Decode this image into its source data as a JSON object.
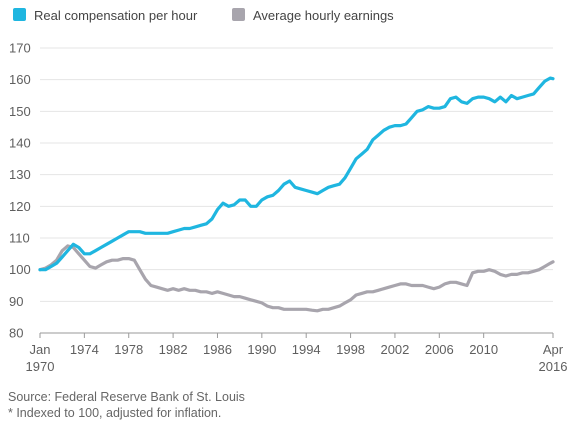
{
  "chart_data": {
    "type": "line",
    "y_ticks": [
      "170",
      "160",
      "150",
      "140",
      "130",
      "120",
      "110",
      "100",
      "90",
      "80"
    ],
    "ylim": [
      80,
      170
    ],
    "xlim": [
      1970.0,
      2016.25
    ],
    "x_ticks": [
      {
        "value": 1970.0,
        "label": "Jan",
        "label2": "1970"
      },
      {
        "value": 1974,
        "label": "1974"
      },
      {
        "value": 1978,
        "label": "1978"
      },
      {
        "value": 1982,
        "label": "1982"
      },
      {
        "value": 1986,
        "label": "1986"
      },
      {
        "value": 1990,
        "label": "1990"
      },
      {
        "value": 1994,
        "label": "1994"
      },
      {
        "value": 1998,
        "label": "1998"
      },
      {
        "value": 2002,
        "label": "2002"
      },
      {
        "value": 2006,
        "label": "2006"
      },
      {
        "value": 2010,
        "label": "2010"
      },
      {
        "value": 2016.25,
        "label": "Apr",
        "label2": "2016"
      }
    ],
    "grid": true,
    "legend_position": "top-left",
    "series": [
      {
        "name": "Real compensation per hour",
        "color": "#1fb6e0",
        "x": [
          1970,
          1970.5,
          1971,
          1971.5,
          1972,
          1972.5,
          1973,
          1973.5,
          1974,
          1974.5,
          1975,
          1975.5,
          1976,
          1976.5,
          1977,
          1977.5,
          1978,
          1978.5,
          1979,
          1979.5,
          1980,
          1980.5,
          1981,
          1981.5,
          1982,
          1982.5,
          1983,
          1983.5,
          1984,
          1984.5,
          1985,
          1985.5,
          1986,
          1986.5,
          1987,
          1987.5,
          1988,
          1988.5,
          1989,
          1989.5,
          1990,
          1990.5,
          1991,
          1991.5,
          1992,
          1992.5,
          1993,
          1993.5,
          1994,
          1994.5,
          1995,
          1995.5,
          1996,
          1996.5,
          1997,
          1997.5,
          1998,
          1998.5,
          1999,
          1999.5,
          2000,
          2000.5,
          2001,
          2001.5,
          2002,
          2002.5,
          2003,
          2003.5,
          2004,
          2004.5,
          2005,
          2005.5,
          2006,
          2006.5,
          2007,
          2007.5,
          2008,
          2008.5,
          2009,
          2009.5,
          2010,
          2010.5,
          2011,
          2011.5,
          2012,
          2012.5,
          2013,
          2013.5,
          2014,
          2014.5,
          2015,
          2015.5,
          2016,
          2016.25
        ],
        "values": [
          100,
          100,
          101,
          102,
          104,
          106,
          108,
          107,
          105,
          105,
          106,
          107,
          108,
          109,
          110,
          111,
          112,
          112,
          112,
          111.5,
          111.5,
          111.5,
          111.5,
          111.5,
          112,
          112.5,
          113,
          113,
          113.5,
          114,
          114.5,
          116,
          119,
          121,
          120,
          120.5,
          122,
          122,
          120,
          120,
          122,
          123,
          123.5,
          125,
          127,
          128,
          126,
          125.5,
          125,
          124.5,
          124,
          125,
          126,
          126.5,
          127,
          129,
          132,
          135,
          136.5,
          138,
          141,
          142.5,
          144,
          145,
          145.5,
          145.5,
          146,
          148,
          150,
          150.5,
          151.5,
          151,
          151,
          151.5,
          154,
          154.5,
          153,
          152.5,
          154,
          154.5,
          154.5,
          154,
          153,
          154.5,
          153,
          155,
          154,
          154.5,
          155,
          155.5,
          157.5,
          159.5,
          160.5,
          160.3
        ]
      },
      {
        "name": "Average hourly earnings",
        "color": "#a8a5ad",
        "x": [
          1970,
          1970.5,
          1971,
          1971.5,
          1972,
          1972.5,
          1973,
          1973.5,
          1974,
          1974.5,
          1975,
          1975.5,
          1976,
          1976.5,
          1977,
          1977.5,
          1978,
          1978.5,
          1979,
          1979.5,
          1980,
          1980.5,
          1981,
          1981.5,
          1982,
          1982.5,
          1983,
          1983.5,
          1984,
          1984.5,
          1985,
          1985.5,
          1986,
          1986.5,
          1987,
          1987.5,
          1988,
          1988.5,
          1989,
          1989.5,
          1990,
          1990.5,
          1991,
          1991.5,
          1992,
          1992.5,
          1993,
          1993.5,
          1994,
          1994.5,
          1995,
          1995.5,
          1996,
          1996.5,
          1997,
          1997.5,
          1998,
          1998.5,
          1999,
          1999.5,
          2000,
          2000.5,
          2001,
          2001.5,
          2002,
          2002.5,
          2003,
          2003.5,
          2004,
          2004.5,
          2005,
          2005.5,
          2006,
          2006.5,
          2007,
          2007.5,
          2008,
          2008.5,
          2009,
          2009.5,
          2010,
          2010.5,
          2011,
          2011.5,
          2012,
          2012.5,
          2013,
          2013.5,
          2014,
          2014.5,
          2015,
          2015.5,
          2016,
          2016.25
        ],
        "values": [
          100,
          100.5,
          101.5,
          103,
          106,
          107.5,
          107,
          105,
          103,
          101,
          100.5,
          101.5,
          102.5,
          103,
          103,
          103.5,
          103.5,
          103,
          100,
          97,
          95,
          94.5,
          94,
          93.5,
          94,
          93.5,
          94,
          93.5,
          93.5,
          93,
          93,
          92.5,
          93,
          92.5,
          92,
          91.5,
          91.5,
          91,
          90.5,
          90,
          89.5,
          88.5,
          88,
          88,
          87.5,
          87.5,
          87.5,
          87.5,
          87.5,
          87.2,
          87,
          87.5,
          87.5,
          88,
          88.5,
          89.5,
          90.5,
          92,
          92.5,
          93,
          93,
          93.5,
          94,
          94.5,
          95,
          95.5,
          95.5,
          95,
          95,
          95,
          94.5,
          94,
          94.5,
          95.5,
          96,
          96,
          95.5,
          95,
          99,
          99.5,
          99.5,
          100,
          99.5,
          98.5,
          98,
          98.5,
          98.5,
          99,
          99,
          99.5,
          100,
          101,
          102,
          102.5
        ]
      }
    ]
  },
  "footer": {
    "source": "Source: Federal Reserve Bank of St. Louis",
    "note": "* Indexed to 100, adjusted for inflation."
  }
}
